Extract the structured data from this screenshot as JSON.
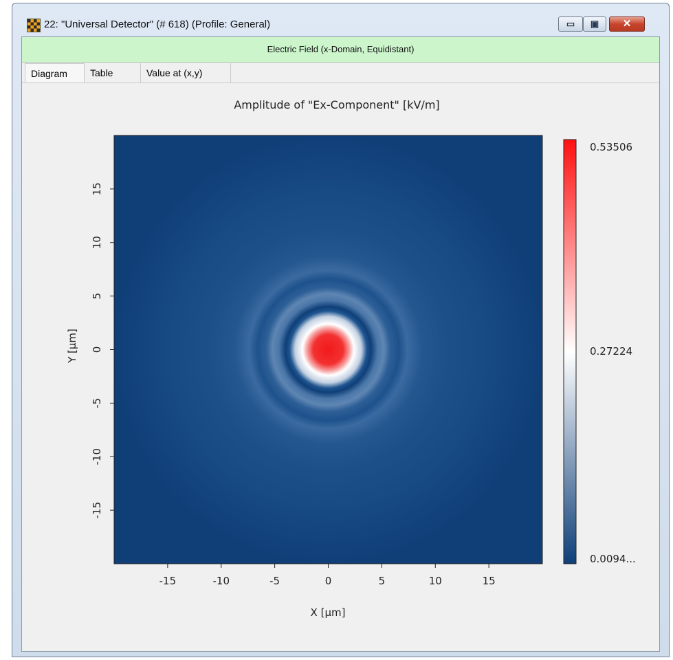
{
  "window": {
    "title": "22: \"Universal Detector\" (# 618) (Profile: General)",
    "minimize_glyph": "▭",
    "maximize_glyph": "▣",
    "close_glyph": "✕"
  },
  "section_header": "Electric Field (x-Domain, Equidistant)",
  "tabs": [
    {
      "label": "Diagram",
      "active": true
    },
    {
      "label": "Table",
      "active": false
    },
    {
      "label": "Value at (x,y)",
      "active": false
    }
  ],
  "chart_data": {
    "type": "heatmap",
    "title": "Amplitude of \"Ex-Component\"  [kV/m]",
    "xlabel": "X [µm]",
    "ylabel": "Y [µm]",
    "xlim": [
      -20,
      20
    ],
    "ylim": [
      -20,
      20
    ],
    "xticks": [
      "-15",
      "-10",
      "-5",
      "0",
      "5",
      "10",
      "15"
    ],
    "xtick_values": [
      -15,
      -10,
      -5,
      0,
      5,
      10,
      15
    ],
    "yticks": [
      "15",
      "10",
      "5",
      "0",
      "-5",
      "-10",
      "-15"
    ],
    "ytick_values": [
      15,
      10,
      5,
      0,
      -5,
      -10,
      -15
    ],
    "colorbar": {
      "min_label": "0.0094...",
      "mid_label": "0.27224",
      "max_label": "0.53506",
      "min_value": 0.0094,
      "mid_value": 0.27224,
      "max_value": 0.53506,
      "colors": [
        "#0f3f78",
        "#ffffff",
        "#ff1111"
      ]
    },
    "field": {
      "description_center": [
        0,
        0
      ],
      "peak_value": 0.53506,
      "background_color": "#12467f"
    }
  }
}
